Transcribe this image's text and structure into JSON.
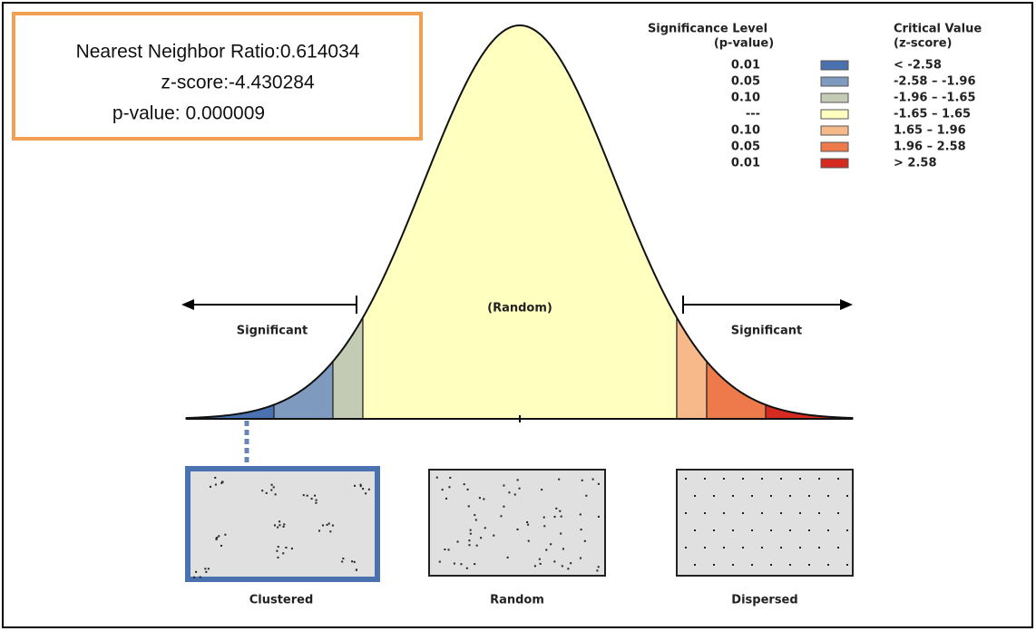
{
  "result_box": {
    "lines": [
      "Nearest Neighbor Ratio:0.614034",
      "z-score:-4.430284",
      "p-value: 0.000009"
    ]
  },
  "legend": {
    "p_header": [
      "Significance Level",
      "(p-value)"
    ],
    "z_header": [
      "Critical Value",
      "(z-score)"
    ],
    "rows": [
      {
        "p": "0.01",
        "z": "< -2.58",
        "color": "#4a72b0"
      },
      {
        "p": "0.05",
        "z": "-2.58 – -1.96",
        "color": "#7f9abf"
      },
      {
        "p": "0.10",
        "z": "-1.96 – -1.65",
        "color": "#c4cbb5"
      },
      {
        "p": "---",
        "z": "-1.65 – 1.65",
        "color": "#ffffc0"
      },
      {
        "p": "0.10",
        "z": "1.65 – 1.96",
        "color": "#f8b98a"
      },
      {
        "p": "0.05",
        "z": "1.96 – 2.58",
        "color": "#ee7a4c"
      },
      {
        "p": "0.01",
        "z": "> 2.58",
        "color": "#d42a20"
      }
    ]
  },
  "curve_labels": {
    "left": "Significant",
    "center": "(Random)",
    "right": "Significant"
  },
  "panels": [
    "Clustered",
    "Random",
    "Dispersed"
  ]
}
